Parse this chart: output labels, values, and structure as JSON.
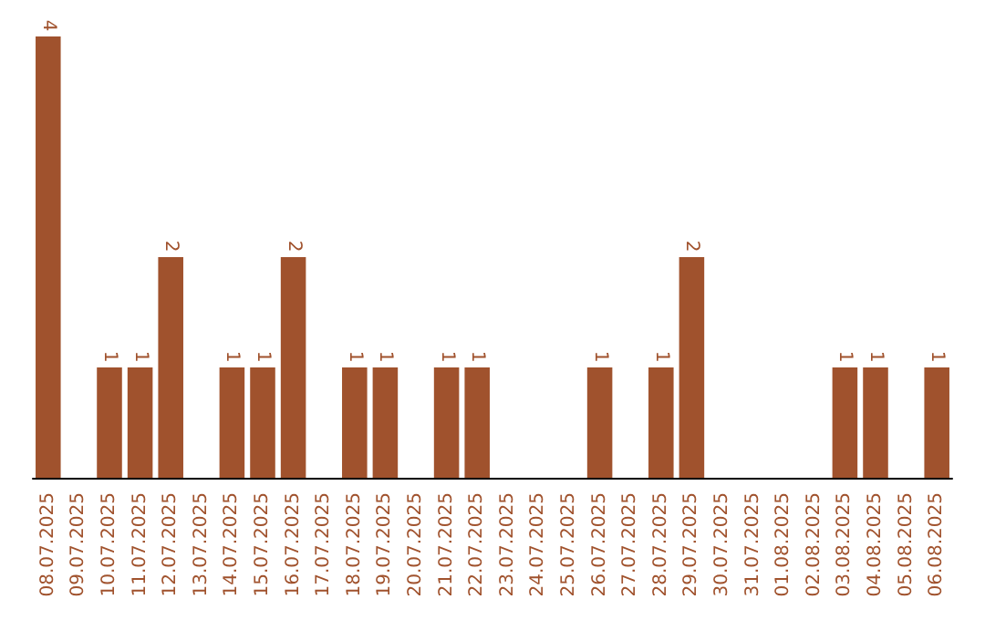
{
  "chart_data": {
    "type": "bar",
    "categories": [
      "08.07.2025",
      "09.07.2025",
      "10.07.2025",
      "11.07.2025",
      "12.07.2025",
      "13.07.2025",
      "14.07.2025",
      "15.07.2025",
      "16.07.2025",
      "17.07.2025",
      "18.07.2025",
      "19.07.2025",
      "20.07.2025",
      "21.07.2025",
      "22.07.2025",
      "23.07.2025",
      "24.07.2025",
      "25.07.2025",
      "26.07.2025",
      "27.07.2025",
      "28.07.2025",
      "29.07.2025",
      "30.07.2025",
      "31.07.2025",
      "01.08.2025",
      "02.08.2025",
      "03.08.2025",
      "04.08.2025",
      "05.08.2025",
      "06.08.2025"
    ],
    "values": [
      4,
      0,
      1,
      1,
      2,
      0,
      1,
      1,
      2,
      0,
      1,
      1,
      0,
      1,
      1,
      0,
      0,
      0,
      1,
      0,
      1,
      2,
      0,
      0,
      0,
      0,
      1,
      1,
      0,
      1
    ],
    "value_labels": [
      "4",
      null,
      "1",
      "1",
      "2",
      null,
      "1",
      "1",
      "2",
      null,
      "1",
      "1",
      null,
      "1",
      "1",
      null,
      null,
      null,
      "1",
      null,
      "1",
      "2",
      null,
      null,
      null,
      null,
      "1",
      "1",
      null,
      "1"
    ],
    "color": "#a0522d"
  }
}
